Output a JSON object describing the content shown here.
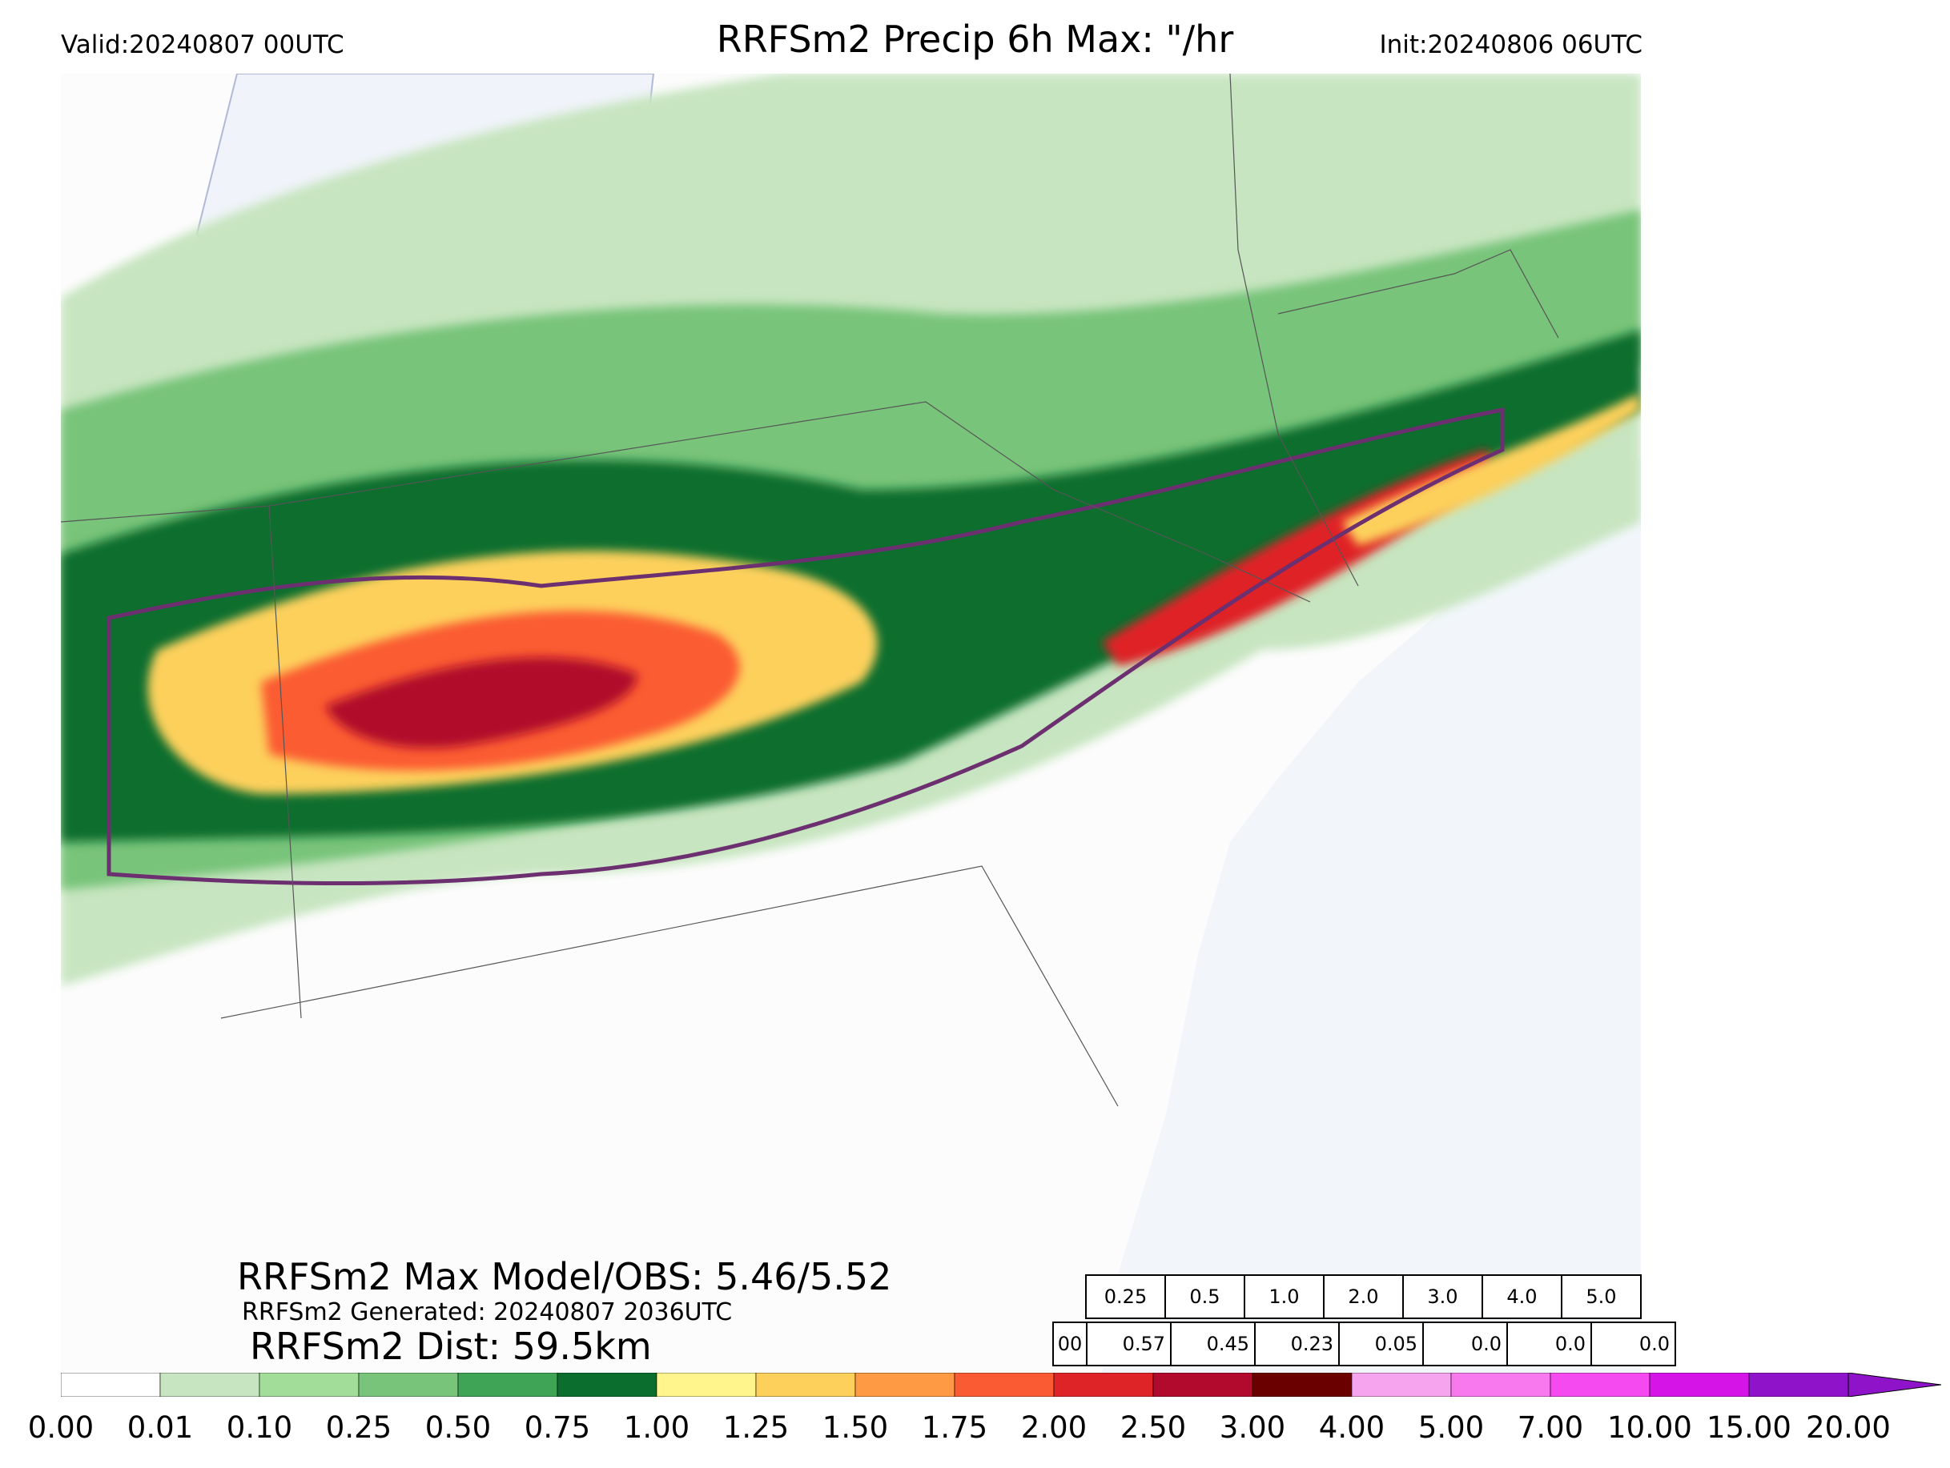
{
  "header": {
    "valid": "Valid:20240807 00UTC",
    "title": "RRFSm2 Precip 6h Max: \"/hr",
    "init": "Init:20240806 06UTC"
  },
  "stats": {
    "max_line": "RRFSm2 Max Model/OBS: 5.46/5.52",
    "generated_line": "RRFSm2 Generated: 20240807 2036UTC",
    "dist_line": "RRFSm2 Dist: 59.5km"
  },
  "threshold_table": {
    "thresholds": [
      "0.25",
      "0.5",
      "1.0",
      "2.0",
      "3.0",
      "4.0",
      "5.0"
    ],
    "row_label": "00",
    "values": [
      "0.57",
      "0.45",
      "0.23",
      "0.05",
      "0.0",
      "0.0",
      "0.0"
    ]
  },
  "colorbar": {
    "ticks": [
      "0.00",
      "0.01",
      "0.10",
      "0.25",
      "0.50",
      "0.75",
      "1.00",
      "1.25",
      "1.50",
      "1.75",
      "2.00",
      "2.50",
      "3.00",
      "4.00",
      "5.00",
      "7.00",
      "10.00",
      "15.00",
      "20.00"
    ],
    "colors": [
      "#ffffff",
      "#c7e5c0",
      "#a3dd9a",
      "#78c47a",
      "#3fa456",
      "#0b6e2f",
      "#fff58c",
      "#fdd05b",
      "#fd9a43",
      "#fb5b32",
      "#df2427",
      "#b10a2c",
      "#6b0000",
      "#f7a4ef",
      "#f779ed",
      "#f54af0",
      "#d515e8",
      "#8f13c9"
    ]
  },
  "map": {
    "ocean_color": "#f2f6fb",
    "land_color": "#fcfcfc",
    "obs_contour_color": "#6c2f6f"
  }
}
